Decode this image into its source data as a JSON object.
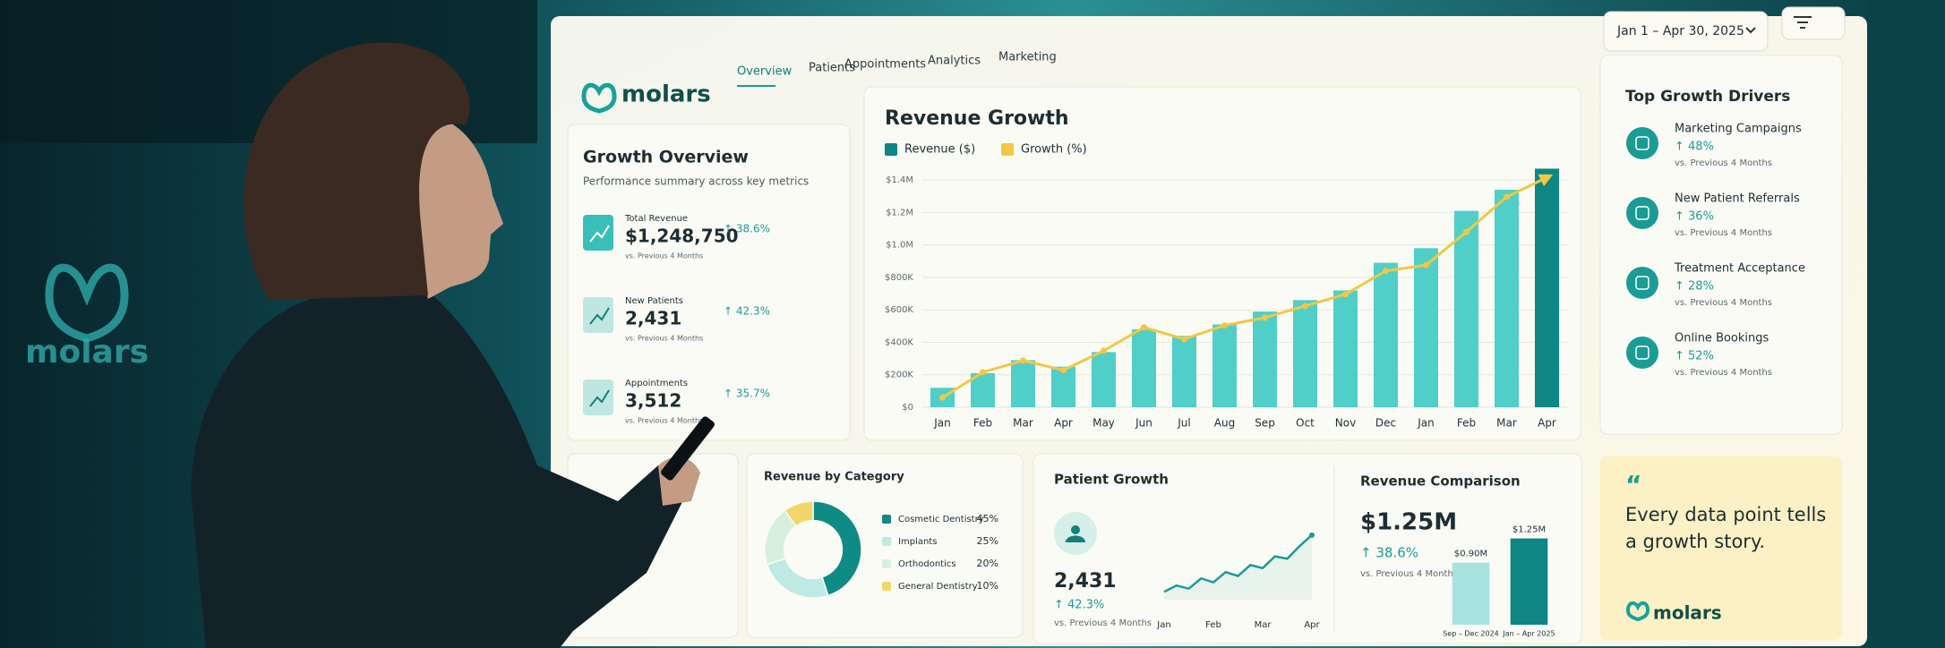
{
  "brand": "molars",
  "nav": [
    "Overview",
    "Patients",
    "Appointments",
    "Analytics",
    "Marketing"
  ],
  "date_range": "Jan 1 – Apr 30, 2025",
  "growth_overview": {
    "title": "Growth Overview",
    "subtitle": "Performance summary across key metrics",
    "kpis": [
      {
        "label": "Total Revenue",
        "value": "$1,248,750",
        "change": "↑ 38.6%",
        "note": "vs. Previous 4 Months"
      },
      {
        "label": "New Patients",
        "value": "2,431",
        "change": "↑ 42.3%",
        "note": "vs. Previous 4 Months"
      },
      {
        "label": "Appointments",
        "value": "3,512",
        "change": "↑ 35.7%",
        "note": "vs. Previous 4 Months"
      }
    ]
  },
  "chart_data": [
    {
      "type": "bar",
      "title": "Revenue Growth",
      "categories": [
        "Jan",
        "Feb",
        "Mar",
        "Apr",
        "May",
        "Jun",
        "Jul",
        "Aug",
        "Sep",
        "Oct",
        "Nov",
        "Dec",
        "Jan",
        "Feb",
        "Mar",
        "Apr"
      ],
      "series": [
        {
          "name": "Revenue ($)",
          "color": "#4fcfc8",
          "highlight_color": "#0e8683",
          "highlight_last": true,
          "values": [
            120000,
            210000,
            290000,
            250000,
            340000,
            480000,
            440000,
            510000,
            590000,
            660000,
            720000,
            890000,
            980000,
            1210000,
            1340000,
            1470000
          ]
        },
        {
          "name": "Growth (%)",
          "color": "#f2c744",
          "type": "line",
          "axis": "y2",
          "values": [
            5,
            18,
            24,
            19,
            29,
            41,
            35,
            42,
            46,
            52,
            58,
            70,
            73,
            90,
            108,
            118
          ]
        }
      ],
      "ylim": [
        0,
        1500000
      ],
      "yticks": [
        {
          "value": 0,
          "label": "$0"
        },
        {
          "value": 200000,
          "label": "$200K"
        },
        {
          "value": 400000,
          "label": "$400K"
        },
        {
          "value": 600000,
          "label": "$600K"
        },
        {
          "value": 800000,
          "label": "$800K"
        },
        {
          "value": 1000000,
          "label": "$1.0M"
        },
        {
          "value": 1200000,
          "label": "$1.2M"
        },
        {
          "value": 1400000,
          "label": "$1.4M"
        }
      ],
      "y2lim": [
        0,
        125
      ],
      "grid": true
    },
    {
      "type": "pie",
      "donut": true,
      "title": "Revenue by Category",
      "categories": [
        "Cosmetic Dentistry",
        "Implants",
        "Orthodontics",
        "General Dentistry"
      ],
      "values": [
        45,
        25,
        20,
        10
      ],
      "value_labels": [
        "45%",
        "25%",
        "20%",
        "10%"
      ],
      "colors": [
        "#0f8b86",
        "#bfe9e3",
        "#d6f0dc",
        "#f3d66a"
      ]
    },
    {
      "type": "line",
      "x": [
        0,
        1,
        2,
        3,
        4,
        5,
        6,
        7,
        8,
        9,
        10,
        11,
        12
      ],
      "values": [
        10,
        18,
        14,
        27,
        22,
        35,
        30,
        44,
        40,
        55,
        52,
        68,
        82
      ],
      "color": "#1a9c94",
      "xlim": [
        0,
        12
      ],
      "xticks": [
        {
          "value": 0,
          "label": "Jan"
        },
        {
          "value": 4,
          "label": "Feb"
        },
        {
          "value": 8,
          "label": "Mar"
        },
        {
          "value": 12,
          "label": "Apr"
        }
      ],
      "ylim": [
        0,
        100
      ]
    },
    {
      "type": "bar",
      "categories": [
        "Sep – Dec 2024",
        "Jan – Apr 2025"
      ],
      "values": [
        900000,
        1250000
      ],
      "value_labels": [
        "$0.90M",
        "$1.25M"
      ],
      "colors": [
        "#a8e3df",
        "#0e8683"
      ],
      "ylim": [
        0,
        1400000
      ]
    }
  ],
  "patient_growth": {
    "title": "Patient Growth",
    "value": "2,431",
    "change": "↑ 42.3%",
    "note": "vs. Previous 4 Months"
  },
  "revenue_comparison": {
    "title": "Revenue Comparison",
    "value": "$1.25M",
    "change": "↑ 38.6%",
    "note": "vs. Previous 4 Months"
  },
  "growth_drivers": {
    "title": "Top Growth Drivers",
    "items": [
      {
        "name": "Marketing Campaigns",
        "change": "↑ 48%",
        "note": "vs. Previous 4 Months"
      },
      {
        "name": "New Patient Referrals",
        "change": "↑ 36%",
        "note": "vs. Previous 4 Months"
      },
      {
        "name": "Treatment Acceptance",
        "change": "↑ 28%",
        "note": "vs. Previous 4 Months"
      },
      {
        "name": "Online Bookings",
        "change": "↑ 52%",
        "note": "vs. Previous 4 Months"
      }
    ]
  },
  "quote": {
    "text": "Every data point tells a growth story."
  }
}
